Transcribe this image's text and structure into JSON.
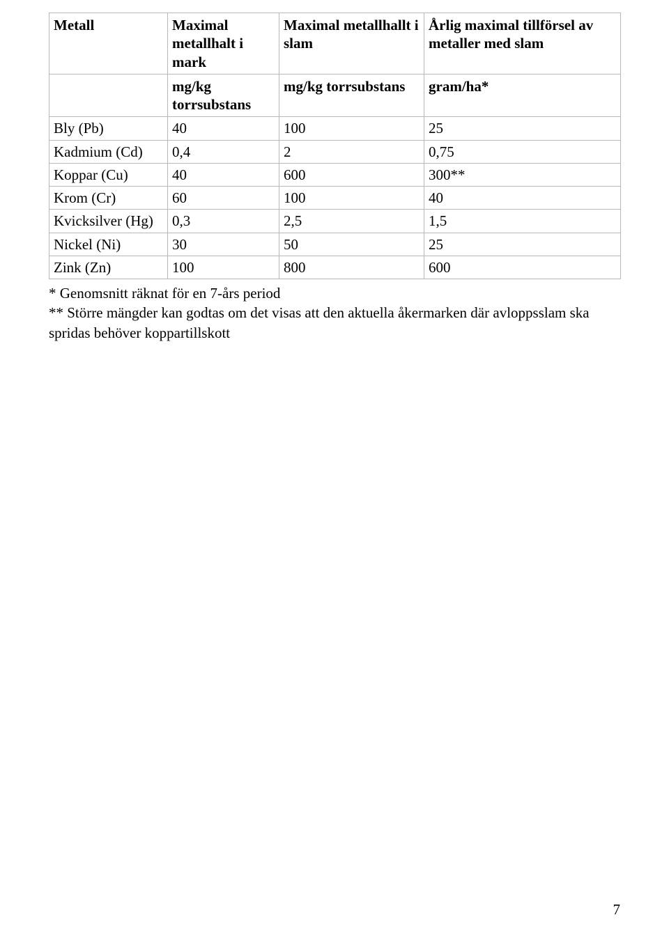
{
  "table": {
    "header1": [
      "Metall",
      "Maximal metallhalt i mark",
      "Maximal metallhallt i slam",
      "Årlig maximal tillförsel av metaller med slam"
    ],
    "header2": [
      "",
      "mg/kg torrsubstans",
      "mg/kg torrsubstans",
      "gram/ha*"
    ],
    "rows": [
      [
        "Bly (Pb)",
        "40",
        "100",
        "25"
      ],
      [
        "Kadmium (Cd)",
        "0,4",
        "2",
        "0,75"
      ],
      [
        "Koppar (Cu)",
        "40",
        "600",
        "300**"
      ],
      [
        "Krom (Cr)",
        "60",
        "100",
        "40"
      ],
      [
        "Kvicksilver (Hg)",
        "0,3",
        "2,5",
        "1,5"
      ],
      [
        "Nickel (Ni)",
        "30",
        "50",
        "25"
      ],
      [
        "Zink (Zn)",
        "100",
        "800",
        "600"
      ]
    ]
  },
  "footnotes": [
    "* Genomsnitt räknat för en 7-års period",
    "** Större mängder kan godtas om det visas att den aktuella åkermarken där avloppsslam ska spridas behöver koppartillskott"
  ],
  "page_number": "7"
}
